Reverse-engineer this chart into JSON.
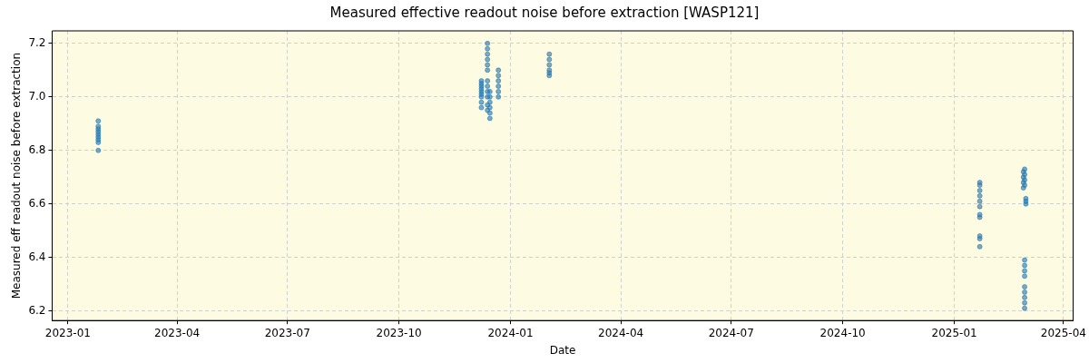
{
  "chart_data": {
    "type": "scatter",
    "title": "Measured effective readout noise before extraction [WASP121]",
    "xlabel": "Date",
    "ylabel": "Measured eff readout noise before extraction",
    "marker": "circle",
    "grid": true,
    "legend": false,
    "xlim": [
      "2022-12-19",
      "2025-04-09"
    ],
    "ylim": [
      6.164,
      7.247
    ],
    "xticks": [
      "2023-01",
      "2023-04",
      "2023-07",
      "2023-10",
      "2024-01",
      "2024-04",
      "2024-07",
      "2024-10",
      "2025-01",
      "2025-04"
    ],
    "yticks": [
      {
        "value": 6.2,
        "label": "6.2"
      },
      {
        "value": 6.4,
        "label": "6.4"
      },
      {
        "value": 6.6,
        "label": "6.6"
      },
      {
        "value": 6.8,
        "label": "6.8"
      },
      {
        "value": 7.0,
        "label": "7.0"
      },
      {
        "value": 7.2,
        "label": "7.2"
      }
    ],
    "series": [
      {
        "color": "#1f77b4",
        "x": [
          "2023-01-26",
          "2023-01-26",
          "2023-01-26",
          "2023-01-26",
          "2023-01-26",
          "2023-01-26",
          "2023-01-26",
          "2023-01-26",
          "2023-01-26",
          "2023-12-08",
          "2023-12-08",
          "2023-12-08",
          "2023-12-08",
          "2023-12-08",
          "2023-12-08",
          "2023-12-08",
          "2023-12-08",
          "2023-12-08",
          "2023-12-13",
          "2023-12-13",
          "2023-12-13",
          "2023-12-13",
          "2023-12-13",
          "2023-12-13",
          "2023-12-13",
          "2023-12-13",
          "2023-12-13",
          "2023-12-13",
          "2023-12-13",
          "2023-12-13",
          "2023-12-15",
          "2023-12-15",
          "2023-12-15",
          "2023-12-15",
          "2023-12-15",
          "2023-12-15",
          "2023-12-22",
          "2023-12-22",
          "2023-12-22",
          "2023-12-22",
          "2023-12-22",
          "2023-12-22",
          "2024-02-02",
          "2024-02-02",
          "2024-02-02",
          "2024-02-02",
          "2024-02-02",
          "2024-02-02",
          "2025-01-22",
          "2025-01-22",
          "2025-01-22",
          "2025-01-22",
          "2025-01-22",
          "2025-01-22",
          "2025-01-22",
          "2025-01-22",
          "2025-01-22",
          "2025-01-22",
          "2025-01-22",
          "2025-02-27",
          "2025-02-27",
          "2025-02-27",
          "2025-02-27",
          "2025-02-28",
          "2025-02-28",
          "2025-02-28",
          "2025-02-28",
          "2025-02-28",
          "2025-02-28",
          "2025-02-28",
          "2025-02-28",
          "2025-02-28",
          "2025-02-28",
          "2025-02-28",
          "2025-02-28",
          "2025-02-28",
          "2025-03-01",
          "2025-03-01",
          "2025-03-01"
        ],
        "values": [
          6.8,
          6.83,
          6.84,
          6.85,
          6.86,
          6.87,
          6.88,
          6.89,
          6.91,
          6.96,
          6.98,
          7.0,
          7.01,
          7.02,
          7.03,
          7.04,
          7.05,
          7.06,
          7.1,
          7.12,
          7.14,
          7.16,
          7.18,
          7.2,
          6.95,
          6.97,
          7.0,
          7.02,
          7.04,
          7.06,
          6.92,
          6.94,
          6.96,
          6.98,
          7.0,
          7.02,
          7.0,
          7.02,
          7.04,
          7.06,
          7.08,
          7.1,
          7.08,
          7.09,
          7.1,
          7.12,
          7.14,
          7.16,
          6.44,
          6.47,
          6.48,
          6.55,
          6.56,
          6.59,
          6.61,
          6.63,
          6.65,
          6.67,
          6.68,
          6.66,
          6.68,
          6.7,
          6.72,
          6.21,
          6.23,
          6.25,
          6.27,
          6.29,
          6.33,
          6.35,
          6.37,
          6.39,
          6.67,
          6.69,
          6.71,
          6.73,
          6.6,
          6.61,
          6.62
        ]
      }
    ]
  }
}
